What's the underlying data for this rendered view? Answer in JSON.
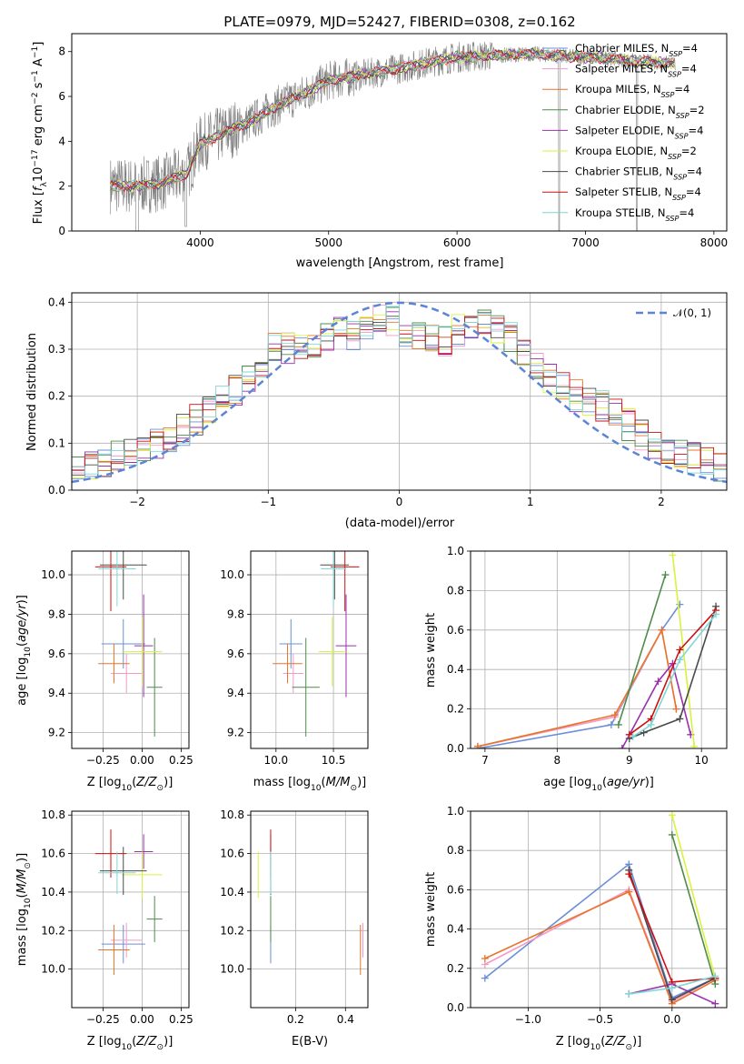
{
  "figure_title": "PLATE=0979, MJD=52427, FIBERID=0308, z=0.162",
  "colors": {
    "Chabrier MILES": "#6a8fd8",
    "Salpeter MILES": "#f39ac7",
    "Kroupa MILES": "#e8742a",
    "Chabrier ELODIE": "#4e8c4a",
    "Salpeter ELODIE": "#9b2fae",
    "Kroupa ELODIE": "#d9f23e",
    "Chabrier STELIB": "#4a4a4a",
    "Salpeter STELIB": "#cc1010",
    "Kroupa STELIB": "#7fd6d6",
    "data": "#808080",
    "normal": "#5b84d6"
  },
  "chart_data": [
    {
      "type": "line",
      "id": "spectrum",
      "xlabel": "wavelength [Angstrom, rest frame]",
      "ylabel": "Flux [f_λ 10^-17 erg cm^-2 s^-1 A^-1]",
      "xlim": [
        3000,
        8100
      ],
      "ylim": [
        0,
        8.8
      ],
      "xticks": [
        4000,
        5000,
        6000,
        7000,
        8000
      ],
      "yticks": [
        0,
        2,
        4,
        6,
        8
      ],
      "legend_position": "upper-right",
      "legend": [
        {
          "base": "Chabrier MILES, N",
          "sub": "SSP",
          "tail": "=4"
        },
        {
          "base": "Salpeter MILES, N",
          "sub": "SSP",
          "tail": "=4"
        },
        {
          "base": "Kroupa MILES, N",
          "sub": "SSP",
          "tail": "=4"
        },
        {
          "base": "Chabrier ELODIE, N",
          "sub": "SSP",
          "tail": "=2"
        },
        {
          "base": "Salpeter ELODIE, N",
          "sub": "SSP",
          "tail": "=4"
        },
        {
          "base": "Kroupa ELODIE, N",
          "sub": "SSP",
          "tail": "=2"
        },
        {
          "base": "Chabrier STELIB, N",
          "sub": "SSP",
          "tail": "=4"
        },
        {
          "base": "Salpeter STELIB, N",
          "sub": "SSP",
          "tail": "=4"
        },
        {
          "base": "Kroupa STELIB, N",
          "sub": "SSP",
          "tail": "=4"
        }
      ],
      "continuum": {
        "x": [
          3300,
          3500,
          3700,
          3900,
          4000,
          4200,
          4400,
          4600,
          4800,
          5000,
          5200,
          5400,
          5600,
          5800,
          6000,
          6200,
          6400,
          6600,
          6800,
          7000,
          7200,
          7400,
          7700
        ],
        "y": [
          2.05,
          2.0,
          2.15,
          2.6,
          3.9,
          4.4,
          4.9,
          5.6,
          6.1,
          6.7,
          6.9,
          7.1,
          7.3,
          7.55,
          7.75,
          7.8,
          7.85,
          7.9,
          7.8,
          7.75,
          7.7,
          7.55,
          7.5
        ]
      }
    },
    {
      "type": "area",
      "id": "residuals",
      "xlabel": "(data-model)/error",
      "ylabel": "Normed distribution",
      "xlim": [
        -2.5,
        2.5
      ],
      "ylim": [
        0,
        0.42
      ],
      "xticks": [
        -2,
        -1,
        0,
        1,
        2
      ],
      "yticks": [
        0.0,
        0.1,
        0.2,
        0.3,
        0.4
      ],
      "legend_label": "𝒩(0, 1)",
      "legend_position": "upper-right",
      "bin_width": 0.1,
      "hist_base": [
        0.04,
        0.05,
        0.06,
        0.07,
        0.08,
        0.09,
        0.1,
        0.11,
        0.13,
        0.15,
        0.17,
        0.19,
        0.21,
        0.23,
        0.27,
        0.3,
        0.3,
        0.31,
        0.3,
        0.32,
        0.34,
        0.33,
        0.35,
        0.37,
        0.36,
        0.33,
        0.33,
        0.32,
        0.32,
        0.34,
        0.35,
        0.36,
        0.34,
        0.33,
        0.3,
        0.27,
        0.24,
        0.22,
        0.2,
        0.19,
        0.18,
        0.16,
        0.14,
        0.12,
        0.1,
        0.09,
        0.08,
        0.07,
        0.06,
        0.05
      ]
    },
    {
      "type": "scatter",
      "id": "age-vs-Z",
      "xlabel": "Z [log10(Z/Z⊙)]",
      "ylabel": "age [log10(age/yr)]",
      "xlim": [
        -0.45,
        0.3
      ],
      "ylim": [
        9.12,
        10.12
      ],
      "xticks": [
        -0.25,
        0.0,
        0.25
      ],
      "xticklabels": [
        "−0.25",
        "0.00",
        "0.25"
      ],
      "yticks": [
        9.2,
        9.4,
        9.6,
        9.8,
        10.0
      ]
    },
    {
      "type": "scatter",
      "id": "age-vs-mass",
      "xlabel": "mass [log10(M/M⊙)]",
      "xlim": [
        9.78,
        10.8
      ],
      "ylim": [
        9.12,
        10.12
      ],
      "xticks": [
        10.0,
        10.5
      ],
      "yticks": [
        9.2,
        9.4,
        9.6,
        9.8,
        10.0
      ]
    },
    {
      "type": "line",
      "id": "weight-vs-age",
      "xlabel": "age [log10(age/yr)]",
      "ylabel": "mass weight",
      "xlim": [
        6.8,
        10.35
      ],
      "ylim": [
        0,
        1.0
      ],
      "xticks": [
        7,
        8,
        9,
        10
      ],
      "yticks": [
        0.0,
        0.2,
        0.4,
        0.6,
        0.8,
        1.0
      ]
    },
    {
      "type": "scatter",
      "id": "mass-vs-Z",
      "xlabel": "Z [log10(Z/Z⊙)]",
      "ylabel": "mass [log10(M/M⊙)]",
      "xlim": [
        -0.45,
        0.3
      ],
      "ylim": [
        9.8,
        10.82
      ],
      "xticks": [
        -0.25,
        0.0,
        0.25
      ],
      "xticklabels": [
        "−0.25",
        "0.00",
        "0.25"
      ],
      "yticks": [
        10.0,
        10.2,
        10.4,
        10.6,
        10.8
      ]
    },
    {
      "type": "scatter",
      "id": "mass-vs-EBV",
      "xlabel": "E(B-V)",
      "xlim": [
        0.02,
        0.49
      ],
      "ylim": [
        9.8,
        10.82
      ],
      "xticks": [
        0.2,
        0.4
      ],
      "yticks": [
        10.0,
        10.2,
        10.4,
        10.6,
        10.8
      ]
    },
    {
      "type": "line",
      "id": "weight-vs-Z",
      "xlabel": "Z [log10(Z/Z⊙)]",
      "ylabel": "mass weight",
      "xlim": [
        -1.4,
        0.38
      ],
      "ylim": [
        0,
        1.0
      ],
      "xticks": [
        -1.0,
        -0.5,
        0.0
      ],
      "xticklabels": [
        "−1.0",
        "−0.5",
        "0.0"
      ],
      "yticks": [
        0.0,
        0.2,
        0.4,
        0.6,
        0.8,
        1.0
      ]
    }
  ],
  "models": [
    {
      "name": "Chabrier MILES",
      "Z": [
        -0.12,
        0.28
      ],
      "age": [
        9.65,
        0.25
      ],
      "mass": [
        10.13,
        0.2
      ],
      "ebv": [
        0.1
      ],
      "ssp_age": [
        6.9,
        8.75,
        9.45,
        9.7
      ],
      "ssp_w": [
        0.0,
        0.12,
        0.6,
        0.73
      ],
      "ssp_Z": [
        -1.3,
        -0.3,
        0.0,
        0.3
      ],
      "ssp_wz": [
        0.15,
        0.73,
        0.05,
        0.15
      ]
    },
    {
      "name": "Salpeter MILES",
      "Z": [
        -0.1,
        0.2
      ],
      "age": [
        9.5,
        0.2
      ],
      "mass": [
        10.15,
        0.18
      ],
      "ebv": [
        0.47
      ],
      "ssp_age": [
        6.9,
        8.8,
        9.45,
        9.65
      ],
      "ssp_w": [
        0.01,
        0.16,
        0.6,
        0.2
      ],
      "ssp_Z": [
        -1.3,
        -0.3,
        0.0,
        0.3
      ],
      "ssp_wz": [
        0.22,
        0.6,
        0.03,
        0.15
      ]
    },
    {
      "name": "Kroupa MILES",
      "Z": [
        -0.18,
        0.2
      ],
      "age": [
        9.55,
        0.2
      ],
      "mass": [
        10.1,
        0.26
      ],
      "ebv": [
        0.46
      ],
      "ssp_age": [
        6.9,
        8.8,
        9.45,
        9.65
      ],
      "ssp_w": [
        0.01,
        0.17,
        0.6,
        0.2
      ],
      "ssp_Z": [
        -1.3,
        -0.3,
        0.0,
        0.3
      ],
      "ssp_wz": [
        0.25,
        0.59,
        0.02,
        0.14
      ]
    },
    {
      "name": "Chabrier ELODIE",
      "Z": [
        0.08,
        0.1
      ],
      "age": [
        9.43,
        0.5
      ],
      "mass": [
        10.26,
        0.24
      ],
      "ebv": [
        0.1
      ],
      "ssp_age": [
        8.85,
        9.5
      ],
      "ssp_w": [
        0.12,
        0.88
      ],
      "ssp_Z": [
        0.0,
        0.3
      ],
      "ssp_wz": [
        0.88,
        0.12
      ]
    },
    {
      "name": "Salpeter ELODIE",
      "Z": [
        0.01,
        0.12
      ],
      "age": [
        9.64,
        0.52
      ],
      "mass": [
        10.61,
        0.18
      ],
      "ebv": [
        0.1
      ],
      "ssp_age": [
        8.9,
        9.4,
        9.6,
        9.85
      ],
      "ssp_w": [
        0.0,
        0.34,
        0.43,
        0.07
      ],
      "ssp_Z": [
        -0.3,
        0.0,
        0.3
      ],
      "ssp_wz": [
        0.07,
        0.12,
        0.02
      ]
    },
    {
      "name": "Kroupa ELODIE",
      "Z": [
        0.0,
        0.26
      ],
      "age": [
        9.61,
        0.35
      ],
      "mass": [
        10.49,
        0.24
      ],
      "ebv": [
        0.05
      ],
      "ssp_age": [
        9.6,
        9.9
      ],
      "ssp_w": [
        0.98,
        0.01
      ],
      "ssp_Z": [
        0.0,
        0.3
      ],
      "ssp_wz": [
        0.98,
        0.15
      ]
    },
    {
      "name": "Chabrier STELIB",
      "Z": [
        -0.12,
        0.3
      ],
      "age": [
        10.05,
        0.35
      ],
      "mass": [
        10.51,
        0.25
      ],
      "ebv": [
        0.1
      ],
      "ssp_age": [
        9.0,
        9.2,
        9.7,
        10.2
      ],
      "ssp_w": [
        0.05,
        0.08,
        0.15,
        0.72
      ],
      "ssp_Z": [
        -0.3,
        0.0,
        0.3
      ],
      "ssp_wz": [
        0.7,
        0.04,
        0.15
      ]
    },
    {
      "name": "Salpeter STELIB",
      "Z": [
        -0.2,
        0.2
      ],
      "age": [
        10.04,
        0.45
      ],
      "mass": [
        10.6,
        0.25
      ],
      "ebv": [
        0.1
      ],
      "ssp_age": [
        9.0,
        9.3,
        9.7,
        10.2
      ],
      "ssp_w": [
        0.07,
        0.15,
        0.5,
        0.7
      ],
      "ssp_Z": [
        -0.3,
        0.0,
        0.3
      ],
      "ssp_wz": [
        0.68,
        0.13,
        0.15
      ]
    },
    {
      "name": "Kroupa STELIB",
      "Z": [
        -0.16,
        0.24
      ],
      "age": [
        10.03,
        0.38
      ],
      "mass": [
        10.5,
        0.22
      ],
      "ebv": [
        0.1
      ],
      "ssp_age": [
        9.05,
        9.3,
        9.7,
        10.2
      ],
      "ssp_w": [
        0.06,
        0.12,
        0.45,
        0.68
      ],
      "ssp_Z": [
        -0.3,
        0.0,
        0.3
      ],
      "ssp_wz": [
        0.07,
        0.1,
        0.16
      ]
    }
  ]
}
